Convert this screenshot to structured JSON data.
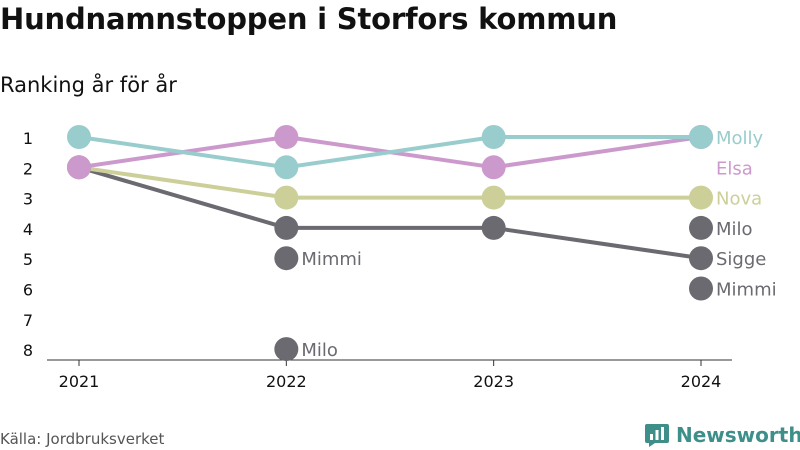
{
  "title": "Hundnamnstoppen i Storfors kommun",
  "subtitle": "Ranking år för år",
  "source": "Källa: Jordbruksverket",
  "brand": {
    "name": "Newsworthy"
  },
  "chart_data": {
    "type": "line",
    "x": [
      "2021",
      "2022",
      "2023",
      "2024"
    ],
    "y_ticks": [
      "1",
      "2",
      "3",
      "4",
      "5",
      "6",
      "7",
      "8"
    ],
    "ylim": [
      1,
      8
    ],
    "y_inverted": true,
    "grid": false,
    "legend": "none",
    "series": [
      {
        "name": "Mimmi",
        "color": "#6b6a70",
        "values": [
          null,
          5,
          null,
          6
        ]
      },
      {
        "name": "Milo",
        "color": "#6b6a70",
        "values": [
          null,
          8,
          null,
          4
        ]
      },
      {
        "name": "Sigge",
        "color": "#6b6a70",
        "values": [
          2,
          4,
          4,
          5
        ]
      },
      {
        "name": "Nova",
        "color": "#cccf98",
        "values": [
          2,
          3,
          3,
          3
        ]
      },
      {
        "name": "Elsa",
        "color": "#cc99cc",
        "values": [
          2,
          1,
          2,
          1
        ]
      },
      {
        "name": "Molly",
        "color": "#99cccc",
        "values": [
          1,
          2,
          1,
          1
        ]
      }
    ],
    "labels": [
      {
        "text": "Mimmi",
        "x": "2022",
        "y": 5,
        "color": "#6b6a70"
      },
      {
        "text": "Milo",
        "x": "2022",
        "y": 8,
        "color": "#6b6a70"
      },
      {
        "text": "Molly",
        "x": "2024",
        "y": 1,
        "color": "#99cccc"
      },
      {
        "text": "Elsa",
        "x": "2024",
        "y": 2,
        "color": "#cc99cc"
      },
      {
        "text": "Nova",
        "x": "2024",
        "y": 3,
        "color": "#cccf98"
      },
      {
        "text": "Milo",
        "x": "2024",
        "y": 4,
        "color": "#6b6a70"
      },
      {
        "text": "Sigge",
        "x": "2024",
        "y": 5,
        "color": "#6b6a70"
      },
      {
        "text": "Mimmi",
        "x": "2024",
        "y": 6,
        "color": "#6b6a70"
      }
    ]
  }
}
